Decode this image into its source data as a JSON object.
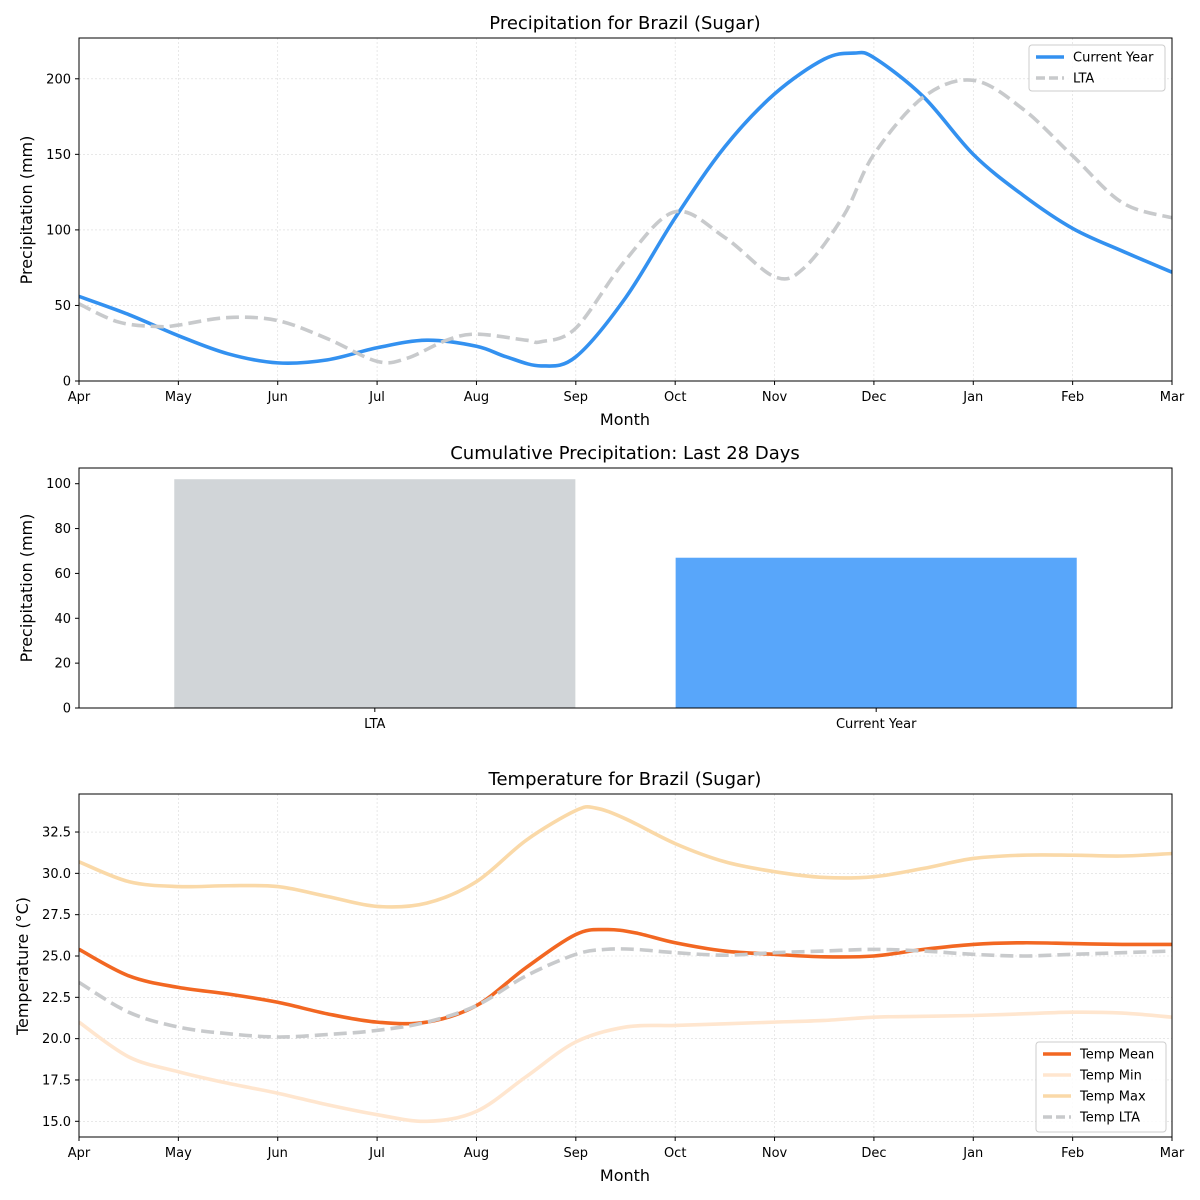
{
  "colors": {
    "current_year": "#3391f0",
    "lta": "#c8cacc",
    "bar_lta": "#d1d5d8",
    "bar_current": "#58a6fa",
    "temp_mean": "#f26722",
    "temp_min": "#ffe6cf",
    "temp_max": "#fad9a8",
    "temp_lta": "#c8cacc"
  },
  "chart_data": [
    {
      "id": "precip",
      "type": "line",
      "title": "Precipitation for Brazil (Sugar)",
      "xlabel": "Month",
      "ylabel": "Precipitation (mm)",
      "categories": [
        "Apr",
        "May",
        "Jun",
        "Jul",
        "Aug",
        "Sep",
        "Oct",
        "Nov",
        "Dec",
        "Jan",
        "Feb",
        "Mar"
      ],
      "xlim": [
        0,
        11
      ],
      "ylim": [
        0,
        227
      ],
      "yticks": [
        0,
        50,
        100,
        150,
        200
      ],
      "grid": true,
      "legend": "top-right",
      "series": [
        {
          "name": "Current Year",
          "style": "solid",
          "color_key": "current_year",
          "points": [
            [
              0,
              56
            ],
            [
              0.5,
              44
            ],
            [
              1,
              30
            ],
            [
              1.5,
              18
            ],
            [
              2,
              12
            ],
            [
              2.5,
              14
            ],
            [
              3,
              22
            ],
            [
              3.5,
              27
            ],
            [
              4,
              23
            ],
            [
              4.3,
              16
            ],
            [
              4.65,
              10
            ],
            [
              5,
              16
            ],
            [
              5.5,
              55
            ],
            [
              6,
              108
            ],
            [
              6.5,
              155
            ],
            [
              7,
              190
            ],
            [
              7.5,
              213
            ],
            [
              7.8,
              217
            ],
            [
              8,
              214
            ],
            [
              8.5,
              188
            ],
            [
              9,
              150
            ],
            [
              9.5,
              123
            ],
            [
              10,
              101
            ],
            [
              10.5,
              86
            ],
            [
              11,
              72
            ]
          ]
        },
        {
          "name": "LTA",
          "style": "dashed",
          "color_key": "lta",
          "points": [
            [
              0,
              51
            ],
            [
              0.4,
              39
            ],
            [
              0.8,
              36
            ],
            [
              1,
              37
            ],
            [
              1.5,
              42
            ],
            [
              2,
              40
            ],
            [
              2.5,
              28
            ],
            [
              3,
              13
            ],
            [
              3.3,
              15
            ],
            [
              3.7,
              27
            ],
            [
              4,
              31
            ],
            [
              4.5,
              27
            ],
            [
              4.65,
              26
            ],
            [
              5,
              35
            ],
            [
              5.5,
              80
            ],
            [
              6,
              112
            ],
            [
              6.5,
              95
            ],
            [
              7,
              69
            ],
            [
              7.3,
              75
            ],
            [
              7.7,
              110
            ],
            [
              8,
              150
            ],
            [
              8.5,
              188
            ],
            [
              9,
              199
            ],
            [
              9.5,
              180
            ],
            [
              10,
              149
            ],
            [
              10.5,
              118
            ],
            [
              11,
              108
            ]
          ]
        }
      ]
    },
    {
      "id": "cumulative",
      "type": "bar",
      "title": "Cumulative Precipitation: Last 28 Days",
      "ylabel": "Precipitation (mm)",
      "categories": [
        "LTA",
        "Current Year"
      ],
      "values": [
        102,
        67
      ],
      "color_keys": [
        "bar_lta",
        "bar_current"
      ],
      "ylim": [
        0,
        107
      ],
      "yticks": [
        0,
        20,
        40,
        60,
        80,
        100
      ],
      "grid": false
    },
    {
      "id": "temp",
      "type": "line",
      "title": "Temperature for Brazil (Sugar)",
      "xlabel": "Month",
      "ylabel": "Temperature (°C)",
      "categories": [
        "Apr",
        "May",
        "Jun",
        "Jul",
        "Aug",
        "Sep",
        "Oct",
        "Nov",
        "Dec",
        "Jan",
        "Feb",
        "Mar"
      ],
      "xlim": [
        0,
        11
      ],
      "ylim": [
        14.05,
        34.8
      ],
      "yticks": [
        15.0,
        17.5,
        20.0,
        22.5,
        25.0,
        27.5,
        30.0,
        32.5
      ],
      "ytick_labels": [
        "15.0",
        "17.5",
        "20.0",
        "22.5",
        "25.0",
        "27.5",
        "30.0",
        "32.5"
      ],
      "grid": true,
      "legend": "bottom-right",
      "series": [
        {
          "name": "Temp Mean",
          "style": "solid",
          "color_key": "temp_mean",
          "points": [
            [
              0,
              25.4
            ],
            [
              0.5,
              23.8
            ],
            [
              1,
              23.1
            ],
            [
              1.5,
              22.7
            ],
            [
              2,
              22.2
            ],
            [
              2.5,
              21.5
            ],
            [
              3,
              21.0
            ],
            [
              3.5,
              21.0
            ],
            [
              4,
              22.0
            ],
            [
              4.5,
              24.3
            ],
            [
              5,
              26.3
            ],
            [
              5.3,
              26.6
            ],
            [
              5.6,
              26.4
            ],
            [
              6,
              25.8
            ],
            [
              6.5,
              25.3
            ],
            [
              7,
              25.1
            ],
            [
              7.5,
              24.95
            ],
            [
              8,
              25.0
            ],
            [
              8.5,
              25.4
            ],
            [
              9,
              25.7
            ],
            [
              9.5,
              25.8
            ],
            [
              10,
              25.75
            ],
            [
              10.5,
              25.7
            ],
            [
              11,
              25.7
            ]
          ]
        },
        {
          "name": "Temp Min",
          "style": "solid",
          "color_key": "temp_min",
          "points": [
            [
              0,
              21.0
            ],
            [
              0.5,
              18.9
            ],
            [
              1,
              18.0
            ],
            [
              1.5,
              17.3
            ],
            [
              2,
              16.7
            ],
            [
              2.5,
              16.0
            ],
            [
              3,
              15.4
            ],
            [
              3.5,
              15.0
            ],
            [
              4,
              15.6
            ],
            [
              4.5,
              17.7
            ],
            [
              5,
              19.8
            ],
            [
              5.5,
              20.7
            ],
            [
              6,
              20.8
            ],
            [
              6.5,
              20.9
            ],
            [
              7,
              21.0
            ],
            [
              7.5,
              21.1
            ],
            [
              8,
              21.3
            ],
            [
              8.5,
              21.35
            ],
            [
              9,
              21.4
            ],
            [
              9.5,
              21.5
            ],
            [
              10,
              21.6
            ],
            [
              10.5,
              21.55
            ],
            [
              11,
              21.3
            ]
          ]
        },
        {
          "name": "Temp Max",
          "style": "solid",
          "color_key": "temp_max",
          "points": [
            [
              0,
              30.7
            ],
            [
              0.5,
              29.5
            ],
            [
              1,
              29.2
            ],
            [
              1.5,
              29.25
            ],
            [
              2,
              29.2
            ],
            [
              2.5,
              28.6
            ],
            [
              3,
              28.0
            ],
            [
              3.5,
              28.2
            ],
            [
              4,
              29.5
            ],
            [
              4.5,
              32.0
            ],
            [
              5,
              33.8
            ],
            [
              5.2,
              33.95
            ],
            [
              5.5,
              33.3
            ],
            [
              6,
              31.8
            ],
            [
              6.5,
              30.7
            ],
            [
              7,
              30.1
            ],
            [
              7.5,
              29.75
            ],
            [
              8,
              29.8
            ],
            [
              8.5,
              30.3
            ],
            [
              9,
              30.9
            ],
            [
              9.5,
              31.1
            ],
            [
              10,
              31.1
            ],
            [
              10.5,
              31.05
            ],
            [
              11,
              31.2
            ]
          ]
        },
        {
          "name": "Temp LTA",
          "style": "dashed",
          "color_key": "temp_lta",
          "points": [
            [
              0,
              23.4
            ],
            [
              0.5,
              21.6
            ],
            [
              1,
              20.7
            ],
            [
              1.5,
              20.3
            ],
            [
              2,
              20.1
            ],
            [
              2.5,
              20.25
            ],
            [
              3,
              20.5
            ],
            [
              3.5,
              21.0
            ],
            [
              4,
              22.0
            ],
            [
              4.5,
              23.8
            ],
            [
              5,
              25.1
            ],
            [
              5.3,
              25.4
            ],
            [
              5.6,
              25.4
            ],
            [
              6,
              25.2
            ],
            [
              6.5,
              25.05
            ],
            [
              7,
              25.2
            ],
            [
              7.5,
              25.3
            ],
            [
              8,
              25.4
            ],
            [
              8.5,
              25.3
            ],
            [
              9,
              25.1
            ],
            [
              9.5,
              25.0
            ],
            [
              10,
              25.1
            ],
            [
              10.5,
              25.2
            ],
            [
              11,
              25.3
            ]
          ]
        }
      ]
    }
  ]
}
